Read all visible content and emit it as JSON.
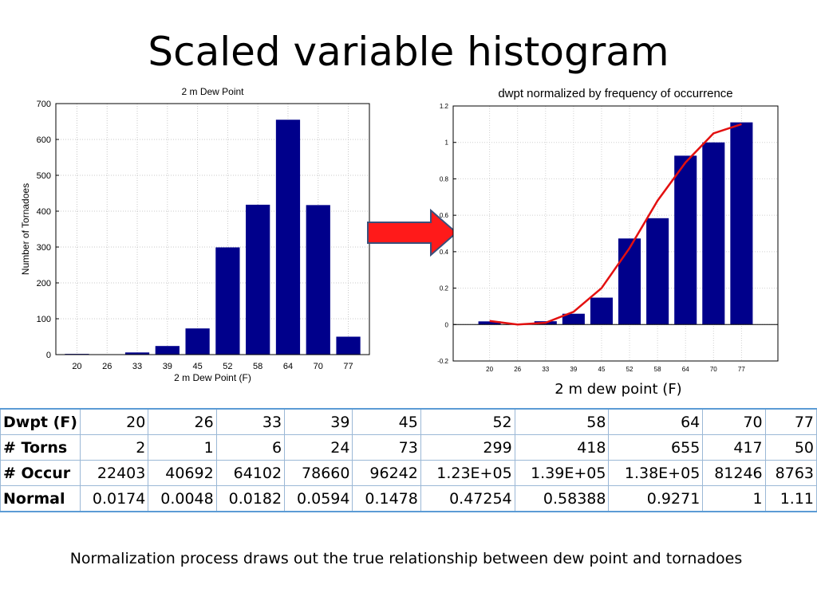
{
  "slide": {
    "title": "Scaled variable histogram",
    "right_xlabel": "2 m dew point (F)",
    "caption": "Normalization process draws out the true relationship between dew point and tornadoes"
  },
  "colors": {
    "bar": "#00008b",
    "line": "#e31010",
    "arrow_fill": "#ff1a1a",
    "arrow_stroke": "#3a4f7a"
  },
  "chart_data": [
    {
      "type": "bar",
      "title": "2 m Dew Point",
      "xlabel": "2 m Dew Point (F)",
      "ylabel": "Number of Tornadoes",
      "categories": [
        "20",
        "26",
        "33",
        "39",
        "45",
        "52",
        "58",
        "64",
        "70",
        "77"
      ],
      "values": [
        2,
        1,
        6,
        24,
        73,
        299,
        418,
        655,
        417,
        50
      ],
      "ylim": [
        0,
        700
      ],
      "yticks": [
        0,
        100,
        200,
        300,
        400,
        500,
        600,
        700
      ],
      "grid": true
    },
    {
      "type": "bar",
      "title": "dwpt normalized by frequency of occurrence",
      "categories": [
        "20",
        "26",
        "33",
        "39",
        "45",
        "52",
        "58",
        "64",
        "70",
        "77"
      ],
      "values": [
        0.0174,
        0.0048,
        0.0182,
        0.0594,
        0.1478,
        0.47254,
        0.58388,
        0.9271,
        1,
        1.11
      ],
      "line": [
        0.02,
        0.0,
        0.01,
        0.07,
        0.2,
        0.42,
        0.68,
        0.89,
        1.05,
        1.1
      ],
      "ylim": [
        -0.2,
        1.2
      ],
      "yticks": [
        "-0.2",
        "0",
        "0.2",
        "0.4",
        "0.6",
        "0.8",
        "1",
        "1.2"
      ],
      "grid": true
    }
  ],
  "table": {
    "rows": [
      {
        "header": "Dwpt (F)",
        "cells": [
          "20",
          "26",
          "33",
          "39",
          "45",
          "52",
          "58",
          "64",
          "70",
          "77"
        ]
      },
      {
        "header": "# Torns",
        "cells": [
          "2",
          "1",
          "6",
          "24",
          "73",
          "299",
          "418",
          "655",
          "417",
          "50"
        ]
      },
      {
        "header": "# Occur",
        "cells": [
          "22403",
          "40692",
          "64102",
          "78660",
          "96242",
          "1.23E+05",
          "1.39E+05",
          "1.38E+05",
          "81246",
          "8763"
        ]
      },
      {
        "header": "Normal",
        "cells": [
          "0.0174",
          "0.0048",
          "0.0182",
          "0.0594",
          "0.1478",
          "0.47254",
          "0.58388",
          "0.9271",
          "1",
          "1.11"
        ]
      }
    ]
  }
}
